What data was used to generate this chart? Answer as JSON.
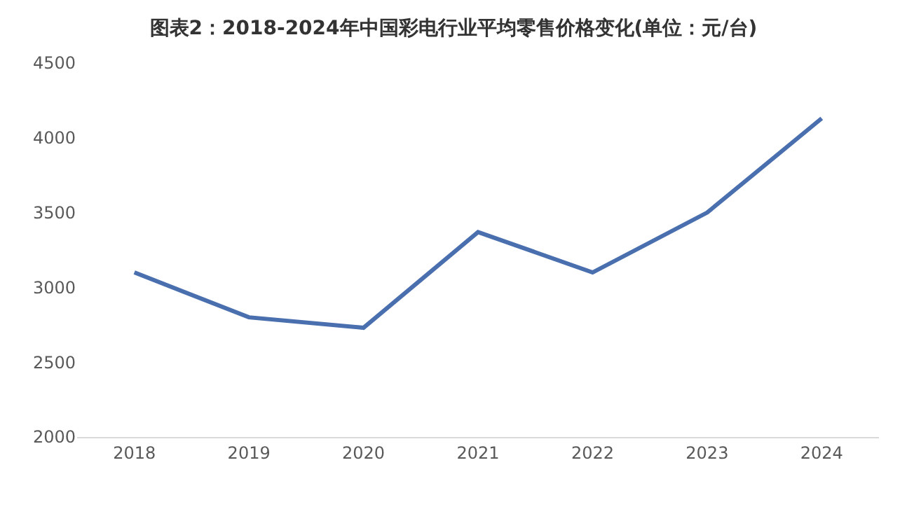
{
  "chart_data": {
    "type": "line",
    "title": "图表2：2018-2024年中国彩电行业平均零售价格变化(单位：元/台)",
    "categories": [
      "2018",
      "2019",
      "2020",
      "2021",
      "2022",
      "2023",
      "2024"
    ],
    "series": [
      {
        "color": "#4a6fae",
        "values": [
          3100,
          2800,
          2730,
          3370,
          3100,
          3500,
          4130
        ]
      }
    ],
    "ylim": [
      2000,
      4500
    ],
    "yticks": [
      2000,
      2500,
      3000,
      3500,
      4000,
      4500
    ],
    "grid": false,
    "marker": "none",
    "line_style": "solid"
  }
}
